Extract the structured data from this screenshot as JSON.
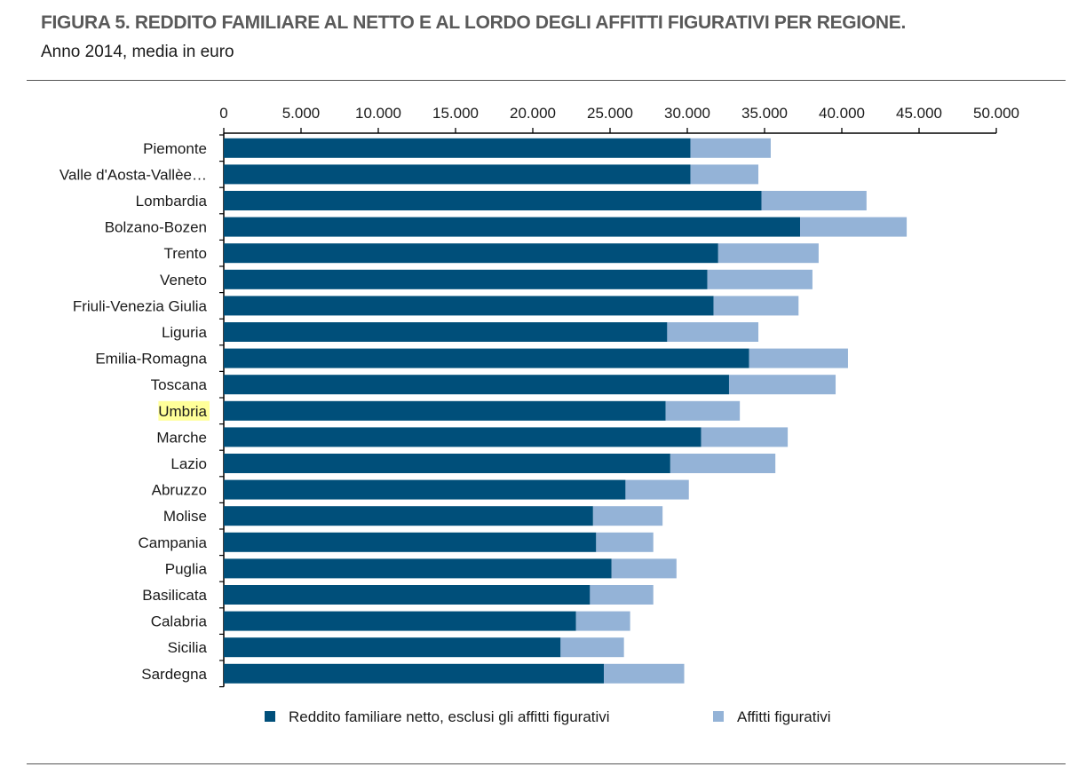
{
  "header": {
    "title": "FIGURA 5. REDDITO FAMILIARE AL NETTO E AL LORDO DEGLI AFFITTI FIGURATIVI PER REGIONE.",
    "subtitle": "Anno 2014, media in euro"
  },
  "colors": {
    "net": "#004f7a",
    "rent": "#94b3d7",
    "highlight": "#ffff99",
    "axis": "#000000"
  },
  "chart_data": {
    "type": "bar",
    "orientation": "horizontal",
    "stacked": true,
    "xlim": [
      0,
      50000
    ],
    "x_ticks": [
      0,
      5000,
      10000,
      15000,
      20000,
      25000,
      30000,
      35000,
      40000,
      45000,
      50000
    ],
    "x_tick_labels": [
      "0",
      "5.000",
      "10.000",
      "15.000",
      "20.000",
      "25.000",
      "30.000",
      "35.000",
      "40.000",
      "45.000",
      "50.000"
    ],
    "x_axis_position": "top",
    "grid": false,
    "legend_position": "bottom",
    "highlighted_category": "Umbria",
    "categories": [
      "Piemonte",
      "Valle d'Aosta-Vallèe…",
      "Lombardia",
      "Bolzano-Bozen",
      "Trento",
      "Veneto",
      "Friuli-Venezia Giulia",
      "Liguria",
      "Emilia-Romagna",
      "Toscana",
      "Umbria",
      "Marche",
      "Lazio",
      "Abruzzo",
      "Molise",
      "Campania",
      "Puglia",
      "Basilicata",
      "Calabria",
      "Sicilia",
      "Sardegna"
    ],
    "series": [
      {
        "name": "Reddito familiare netto, esclusi gli affitti figurativi",
        "values": [
          30200,
          30200,
          34800,
          37300,
          32000,
          31300,
          31700,
          28700,
          34000,
          32700,
          28600,
          30900,
          28900,
          26000,
          23900,
          24100,
          25100,
          23700,
          22800,
          21800,
          24600
        ]
      },
      {
        "name": "Affitti figurativi",
        "values": [
          5200,
          4400,
          6800,
          6900,
          6500,
          6800,
          5500,
          5900,
          6400,
          6900,
          4800,
          5600,
          6800,
          4100,
          4500,
          3700,
          4200,
          4100,
          3500,
          4100,
          5200
        ]
      }
    ]
  }
}
